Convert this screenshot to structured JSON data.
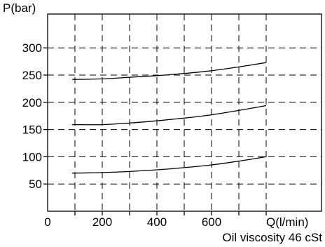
{
  "chart_data": {
    "type": "line",
    "xlabel": "Q(l/min)",
    "ylabel": "P(bar)",
    "note": "Oil viscosity 46 cSt",
    "xlim": [
      0,
      800
    ],
    "ylim": [
      0,
      330
    ],
    "x_ticks": [
      0,
      200,
      400,
      600
    ],
    "x_tick_labels": [
      "0",
      "200",
      "400",
      "600"
    ],
    "y_ticks": [
      50,
      100,
      150,
      200,
      250,
      300
    ],
    "y_tick_labels": [
      "50",
      "100",
      "150",
      "200",
      "250",
      "300"
    ],
    "grid": true,
    "series": [
      {
        "x": [
          90,
          200,
          300,
          400,
          500,
          600,
          700,
          800
        ],
        "y": [
          242,
          243,
          246,
          249,
          253,
          258,
          265,
          273
        ]
      },
      {
        "x": [
          90,
          200,
          300,
          400,
          500,
          600,
          700,
          800
        ],
        "y": [
          159,
          159,
          162,
          166,
          171,
          177,
          185,
          194
        ]
      },
      {
        "x": [
          90,
          200,
          300,
          400,
          500,
          600,
          700,
          800
        ],
        "y": [
          70,
          71,
          73,
          76,
          80,
          85,
          92,
          100
        ]
      }
    ]
  }
}
